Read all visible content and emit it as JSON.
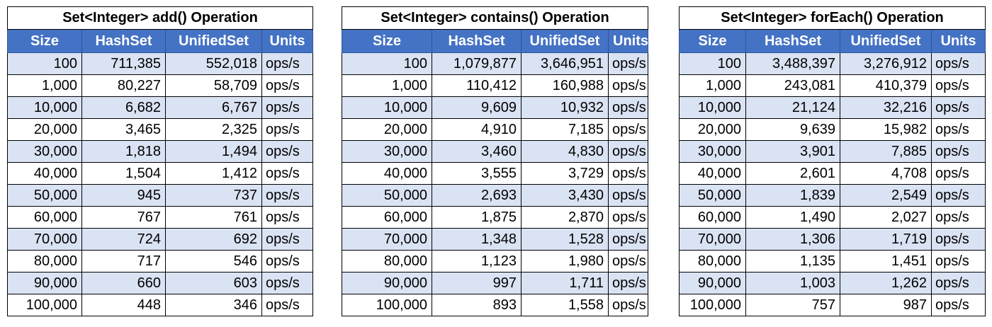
{
  "tables": [
    {
      "title": "Set<Integer> add() Operation",
      "headers": [
        "Size",
        "HashSet",
        "UnifiedSet",
        "Units"
      ],
      "rows": [
        [
          "100",
          "711,385",
          "552,018",
          "ops/s"
        ],
        [
          "1,000",
          "80,227",
          "58,709",
          "ops/s"
        ],
        [
          "10,000",
          "6,682",
          "6,767",
          "ops/s"
        ],
        [
          "20,000",
          "3,465",
          "2,325",
          "ops/s"
        ],
        [
          "30,000",
          "1,818",
          "1,494",
          "ops/s"
        ],
        [
          "40,000",
          "1,504",
          "1,412",
          "ops/s"
        ],
        [
          "50,000",
          "945",
          "737",
          "ops/s"
        ],
        [
          "60,000",
          "767",
          "761",
          "ops/s"
        ],
        [
          "70,000",
          "724",
          "692",
          "ops/s"
        ],
        [
          "80,000",
          "717",
          "546",
          "ops/s"
        ],
        [
          "90,000",
          "660",
          "603",
          "ops/s"
        ],
        [
          "100,000",
          "448",
          "346",
          "ops/s"
        ]
      ]
    },
    {
      "title": "Set<Integer> contains() Operation",
      "headers": [
        "Size",
        "HashSet",
        "UnifiedSet",
        "Units"
      ],
      "rows": [
        [
          "100",
          "1,079,877",
          "3,646,951",
          "ops/s"
        ],
        [
          "1,000",
          "110,412",
          "160,988",
          "ops/s"
        ],
        [
          "10,000",
          "9,609",
          "10,932",
          "ops/s"
        ],
        [
          "20,000",
          "4,910",
          "7,185",
          "ops/s"
        ],
        [
          "30,000",
          "3,460",
          "4,830",
          "ops/s"
        ],
        [
          "40,000",
          "3,555",
          "3,729",
          "ops/s"
        ],
        [
          "50,000",
          "2,693",
          "3,430",
          "ops/s"
        ],
        [
          "60,000",
          "1,875",
          "2,870",
          "ops/s"
        ],
        [
          "70,000",
          "1,348",
          "1,528",
          "ops/s"
        ],
        [
          "80,000",
          "1,123",
          "1,980",
          "ops/s"
        ],
        [
          "90,000",
          "997",
          "1,711",
          "ops/s"
        ],
        [
          "100,000",
          "893",
          "1,558",
          "ops/s"
        ]
      ]
    },
    {
      "title": "Set<Integer> forEach() Operation",
      "headers": [
        "Size",
        "HashSet",
        "UnifiedSet",
        "Units"
      ],
      "rows": [
        [
          "100",
          "3,488,397",
          "3,276,912",
          "ops/s"
        ],
        [
          "1,000",
          "243,081",
          "410,379",
          "ops/s"
        ],
        [
          "10,000",
          "21,124",
          "32,216",
          "ops/s"
        ],
        [
          "20,000",
          "9,639",
          "15,982",
          "ops/s"
        ],
        [
          "30,000",
          "3,901",
          "7,885",
          "ops/s"
        ],
        [
          "40,000",
          "2,601",
          "4,708",
          "ops/s"
        ],
        [
          "50,000",
          "1,839",
          "2,549",
          "ops/s"
        ],
        [
          "60,000",
          "1,490",
          "2,027",
          "ops/s"
        ],
        [
          "70,000",
          "1,306",
          "1,719",
          "ops/s"
        ],
        [
          "80,000",
          "1,135",
          "1,451",
          "ops/s"
        ],
        [
          "90,000",
          "1,003",
          "1,262",
          "ops/s"
        ],
        [
          "100,000",
          "757",
          "987",
          "ops/s"
        ]
      ]
    }
  ],
  "colors": {
    "header_fill": "#4472c4",
    "header_text": "#ffffff",
    "shaded_row": "#dae3f3",
    "plain_row": "#ffffff"
  }
}
